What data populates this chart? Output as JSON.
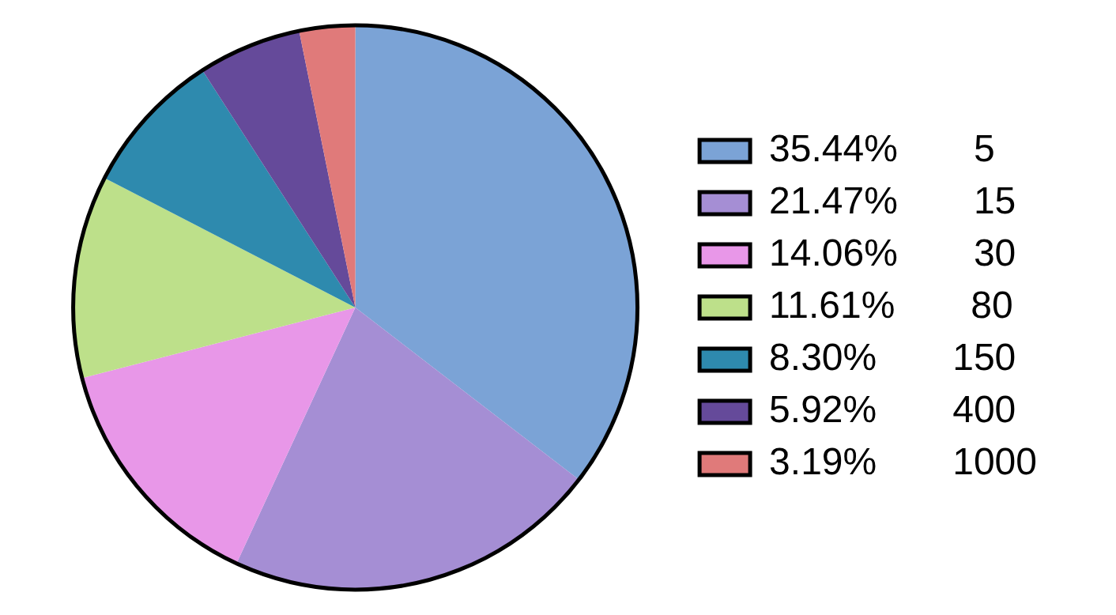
{
  "chart_data": {
    "type": "pie",
    "categories": [
      "5",
      "15",
      "30",
      "80",
      "150",
      "400",
      "1000"
    ],
    "values": [
      35.44,
      21.47,
      14.06,
      11.61,
      8.3,
      5.92,
      3.19
    ],
    "value_labels": [
      "35.44%",
      "21.47%",
      "14.06%",
      "11.61%",
      "8.30%",
      "5.92%",
      "3.19%"
    ],
    "colors": [
      "#7ba3d6",
      "#a58ed4",
      "#e897e8",
      "#bde08a",
      "#2e8aae",
      "#654a9a",
      "#e07a7a"
    ],
    "legend": "right"
  }
}
